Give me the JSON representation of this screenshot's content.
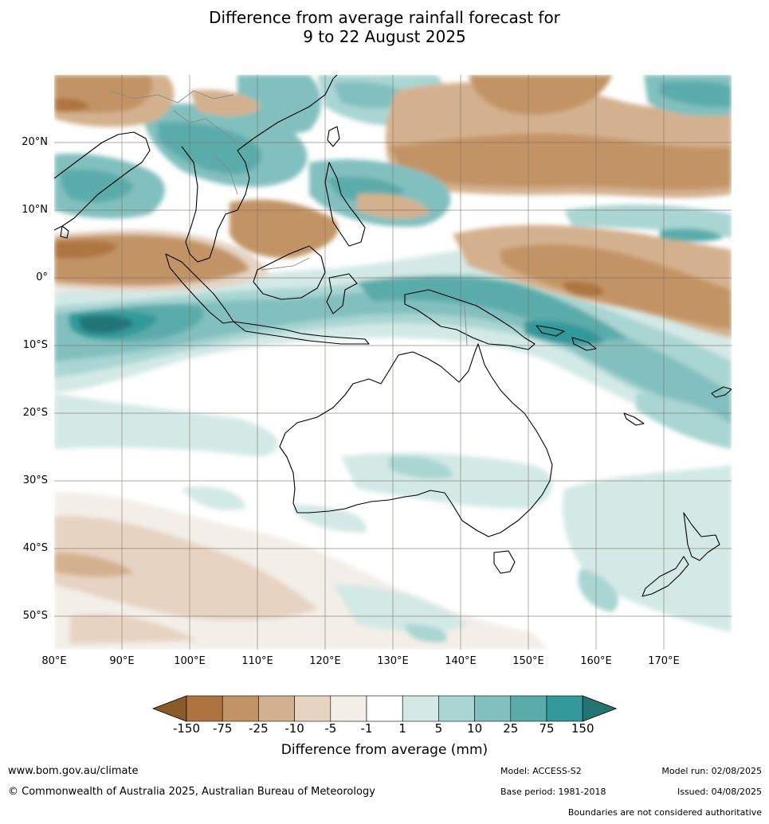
{
  "title": {
    "line1": "Difference from average rainfall forecast for",
    "line2": "9 to 22 August 2025"
  },
  "map": {
    "latitude_labels": [
      "20°N",
      "10°N",
      "0°",
      "10°S",
      "20°S",
      "30°S",
      "40°S",
      "50°S"
    ],
    "longitude_labels": [
      "80°E",
      "90°E",
      "100°E",
      "110°E",
      "120°E",
      "130°E",
      "140°E",
      "150°E",
      "160°E",
      "170°E"
    ]
  },
  "legend": {
    "title": "Difference from average (mm)",
    "tick_labels": [
      "-150",
      "-75",
      "-25",
      "-10",
      "-5",
      "-1",
      "1",
      "5",
      "10",
      "25",
      "75",
      "150"
    ],
    "colors": [
      "#8a5a2a",
      "#ad743f",
      "#c29465",
      "#d4b18e",
      "#e6d3c2",
      "#f3eee7",
      "#ffffff",
      "#d3e9e6",
      "#a9d5d3",
      "#82c0bf",
      "#5aacaa",
      "#33999a",
      "#247474"
    ]
  },
  "footer": {
    "url": "www.bom.gov.au/climate",
    "copyright": "© Commonwealth of Australia 2025, Australian Bureau of Meteorology",
    "model": "Model: ACCESS-S2",
    "base_period": "Base period: 1981-2018",
    "model_run": "Model run: 02/08/2025",
    "issued": "Issued: 04/08/2025",
    "disclaimer": "Boundaries are not considered authoritative"
  }
}
